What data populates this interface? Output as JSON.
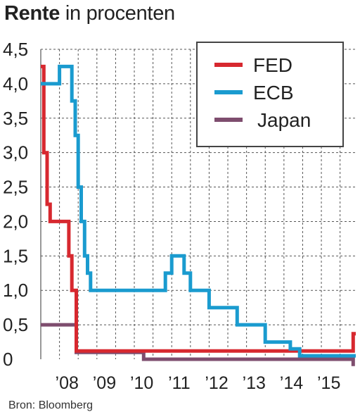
{
  "title_bold": "Rente",
  "title_rest": " in procenten",
  "source": "Bron: Bloomberg",
  "chart_data": {
    "type": "line",
    "step": true,
    "title": "Rente in procenten",
    "xlabel": "",
    "ylabel": "",
    "xlim": [
      2007.5,
      2015.92
    ],
    "ylim": [
      0,
      4.5
    ],
    "grid": true,
    "legend_position": "top-right",
    "y_ticks": [
      "0",
      "0,5",
      "1,0",
      "1,5",
      "2,0",
      "2,5",
      "3,0",
      "3,5",
      "4,0",
      "4,5"
    ],
    "y_tick_values": [
      0,
      0.5,
      1.0,
      1.5,
      2.0,
      2.5,
      3.0,
      3.5,
      4.0,
      4.5
    ],
    "x_ticks": [
      "’08",
      "’09",
      "’10",
      "’11",
      "’12",
      "’13",
      "’14",
      "’15"
    ],
    "x_tick_values": [
      2008,
      2009,
      2010,
      2011,
      2012,
      2013,
      2014,
      2015
    ],
    "series": [
      {
        "name": "FED",
        "color": "#d7282f",
        "points": [
          [
            2007.5,
            4.25
          ],
          [
            2007.58,
            4.25
          ],
          [
            2007.58,
            3.0
          ],
          [
            2007.67,
            3.0
          ],
          [
            2007.67,
            2.25
          ],
          [
            2007.75,
            2.25
          ],
          [
            2007.75,
            2.0
          ],
          [
            2008.25,
            2.0
          ],
          [
            2008.25,
            1.5
          ],
          [
            2008.33,
            1.5
          ],
          [
            2008.33,
            1.0
          ],
          [
            2008.45,
            1.0
          ],
          [
            2008.45,
            0.12
          ],
          [
            2015.85,
            0.12
          ],
          [
            2015.85,
            0.37
          ],
          [
            2015.92,
            0.37
          ]
        ]
      },
      {
        "name": "ECB",
        "color": "#1a9bcf",
        "points": [
          [
            2007.5,
            4.0
          ],
          [
            2008.0,
            4.0
          ],
          [
            2008.0,
            4.25
          ],
          [
            2008.33,
            4.25
          ],
          [
            2008.33,
            3.75
          ],
          [
            2008.42,
            3.75
          ],
          [
            2008.42,
            3.25
          ],
          [
            2008.5,
            3.25
          ],
          [
            2008.5,
            2.5
          ],
          [
            2008.58,
            2.5
          ],
          [
            2008.58,
            2.0
          ],
          [
            2008.67,
            2.0
          ],
          [
            2008.67,
            1.5
          ],
          [
            2008.75,
            1.5
          ],
          [
            2008.75,
            1.25
          ],
          [
            2008.83,
            1.25
          ],
          [
            2008.83,
            1.0
          ],
          [
            2010.83,
            1.0
          ],
          [
            2010.83,
            1.25
          ],
          [
            2011.0,
            1.25
          ],
          [
            2011.0,
            1.5
          ],
          [
            2011.33,
            1.5
          ],
          [
            2011.33,
            1.25
          ],
          [
            2011.5,
            1.25
          ],
          [
            2011.5,
            1.0
          ],
          [
            2012.0,
            1.0
          ],
          [
            2012.0,
            0.75
          ],
          [
            2012.75,
            0.75
          ],
          [
            2012.75,
            0.5
          ],
          [
            2013.5,
            0.5
          ],
          [
            2013.5,
            0.25
          ],
          [
            2014.17,
            0.25
          ],
          [
            2014.17,
            0.15
          ],
          [
            2014.42,
            0.15
          ],
          [
            2014.42,
            0.05
          ],
          [
            2015.92,
            0.05
          ]
        ]
      },
      {
        "name": "Japan",
        "color": "#7e4d6e",
        "points": [
          [
            2007.5,
            0.5
          ],
          [
            2008.45,
            0.5
          ],
          [
            2008.45,
            0.1
          ],
          [
            2010.25,
            0.1
          ],
          [
            2010.25,
            0.0
          ],
          [
            2015.85,
            0.0
          ],
          [
            2015.85,
            -0.1
          ]
        ]
      }
    ]
  }
}
